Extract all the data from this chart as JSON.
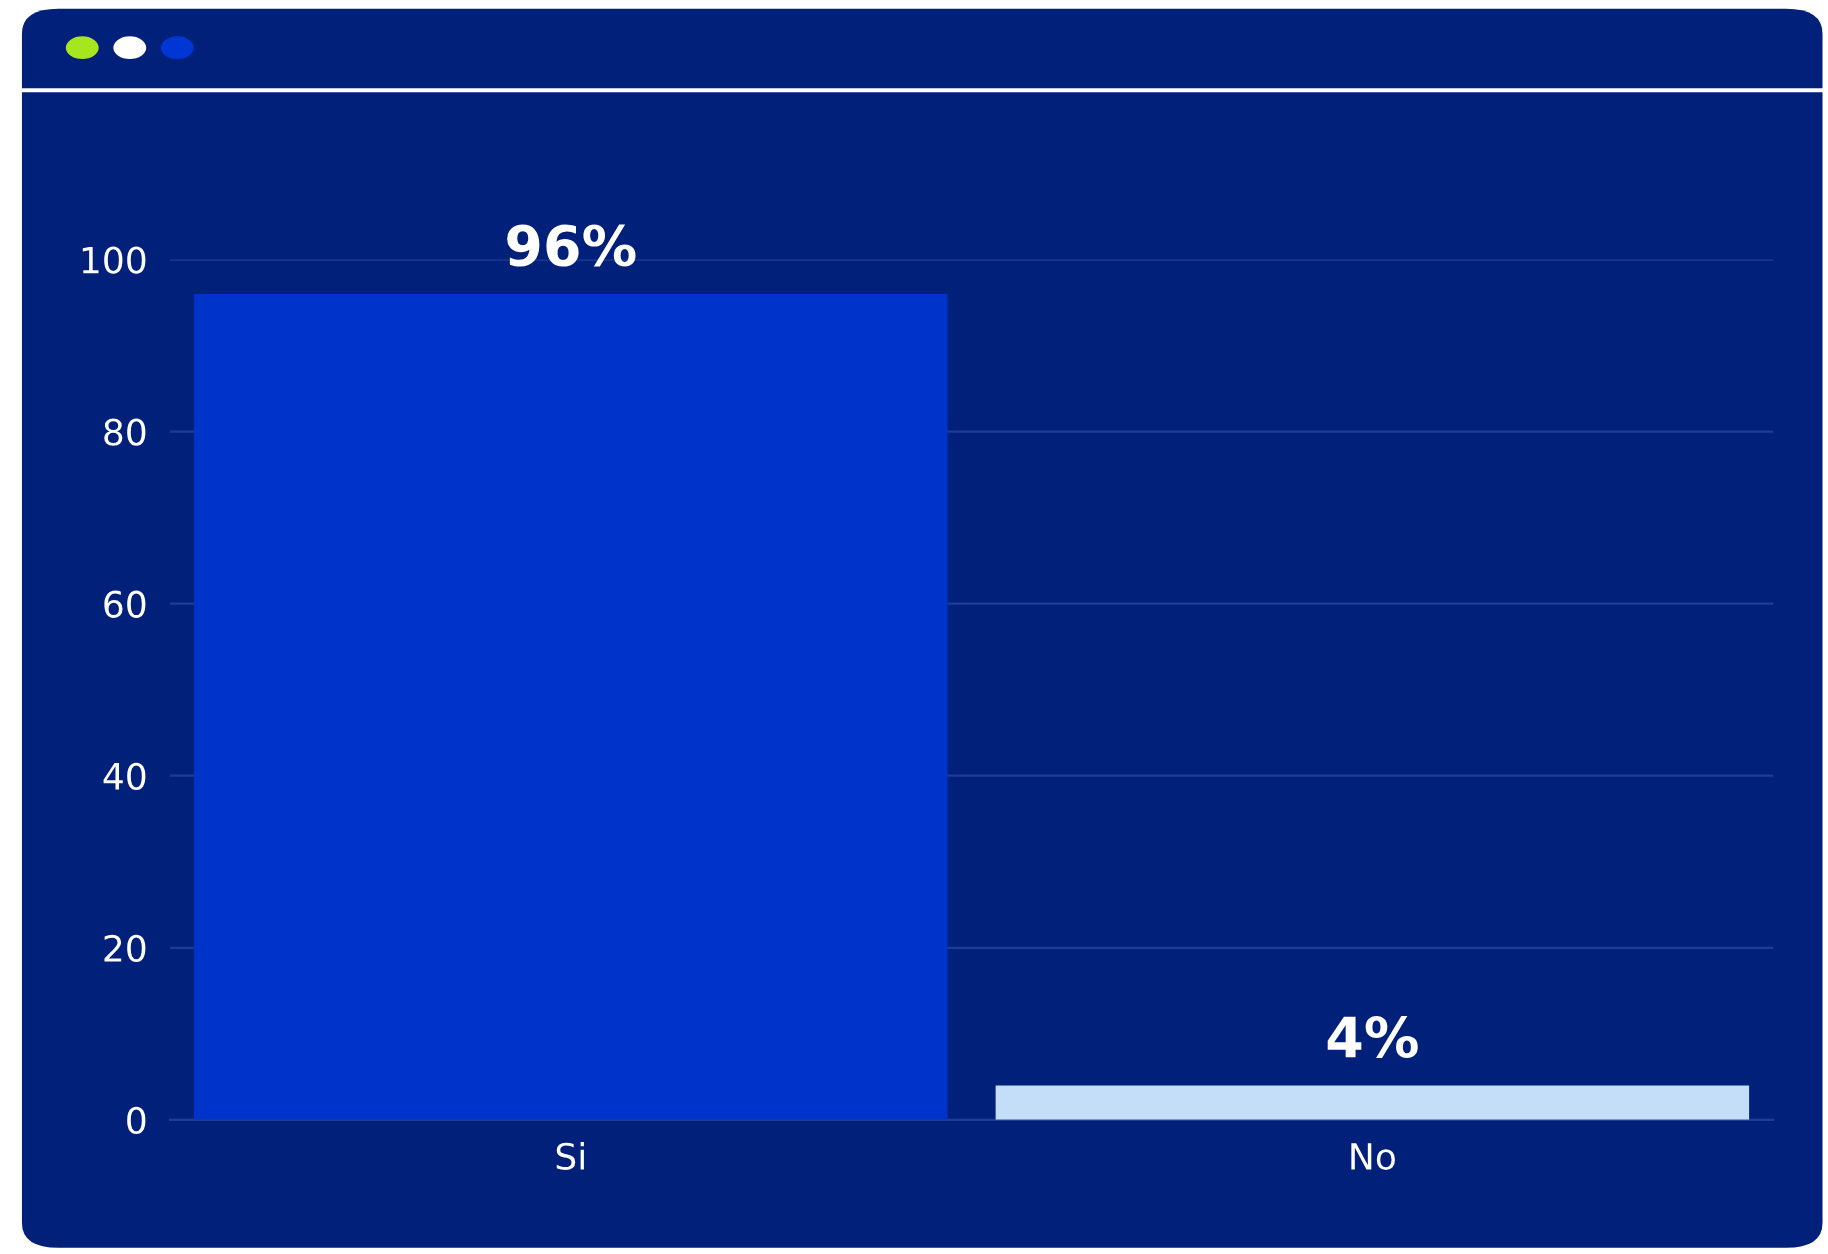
{
  "chart_data": {
    "type": "bar",
    "categories": [
      "Si",
      "No"
    ],
    "values": [
      96,
      4
    ],
    "colors": [
      "#0033c9",
      "#c4defa"
    ],
    "value_labels": [
      "96%",
      "4%"
    ],
    "ylim": [
      0,
      100
    ],
    "yticks": [
      0,
      20,
      40,
      60,
      80,
      100
    ],
    "grid": "y"
  }
}
